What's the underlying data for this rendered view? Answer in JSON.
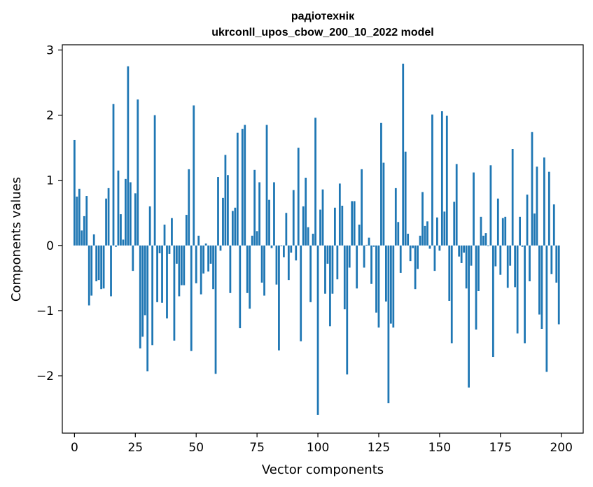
{
  "chart_data": {
    "type": "bar",
    "title": "радіотехнік",
    "subtitle": "ukrconll_upos_cbow_200_10_2022 model",
    "xlabel": "Vector components",
    "ylabel": "Components values",
    "xlim": [
      -5,
      209
    ],
    "ylim": [
      -2.88,
      3.08
    ],
    "xticks": [
      0,
      25,
      50,
      75,
      100,
      125,
      150,
      175,
      200
    ],
    "yticks": [
      -2,
      -1,
      0,
      1,
      2,
      3
    ],
    "ytick_labels": [
      "−2",
      "−1",
      "0",
      "1",
      "2",
      "3"
    ],
    "bar_color": "#1f77b4",
    "grid": false,
    "values": [
      1.62,
      0.75,
      0.87,
      0.23,
      0.45,
      0.76,
      -0.92,
      -0.77,
      0.17,
      -0.55,
      -0.53,
      -0.67,
      -0.66,
      0.72,
      0.88,
      -0.78,
      2.17,
      -0.02,
      1.15,
      0.48,
      0.09,
      1.02,
      2.75,
      0.97,
      -0.39,
      0.8,
      2.24,
      -1.58,
      -1.4,
      -1.07,
      -1.93,
      0.6,
      -1.53,
      2.0,
      -0.87,
      -0.12,
      -0.88,
      0.32,
      -1.12,
      -0.13,
      0.42,
      -1.46,
      -0.28,
      -0.78,
      -0.61,
      -0.61,
      0.47,
      1.17,
      -1.62,
      2.15,
      -0.58,
      0.15,
      -0.75,
      -0.43,
      0.03,
      -0.4,
      -0.28,
      -0.67,
      -1.97,
      1.05,
      -0.08,
      0.73,
      1.39,
      1.08,
      -0.73,
      0.53,
      0.58,
      1.73,
      -1.27,
      1.79,
      1.85,
      -0.73,
      -0.97,
      0.15,
      1.16,
      0.22,
      0.97,
      -0.57,
      -0.77,
      1.85,
      0.7,
      -0.04,
      0.97,
      -0.6,
      -1.61,
      -0.01,
      -0.18,
      0.5,
      -0.53,
      -0.11,
      0.85,
      -0.23,
      1.5,
      -1.47,
      0.6,
      1.04,
      0.28,
      -0.87,
      0.18,
      1.96,
      -2.6,
      0.55,
      0.86,
      -0.74,
      -0.28,
      -1.24,
      -0.74,
      0.58,
      -0.52,
      0.95,
      0.61,
      -0.98,
      -1.98,
      -0.34,
      0.68,
      0.68,
      -0.66,
      0.32,
      1.17,
      -0.34,
      0.01,
      0.12,
      -0.59,
      -0.02,
      -1.03,
      -1.26,
      1.88,
      1.27,
      -0.86,
      -2.42,
      -1.2,
      -1.26,
      0.88,
      0.36,
      -0.42,
      2.79,
      1.44,
      0.18,
      -0.24,
      -0.04,
      -0.67,
      -0.36,
      0.15,
      0.82,
      0.3,
      0.37,
      -0.05,
      2.01,
      -0.39,
      0.43,
      -0.08,
      2.06,
      0.52,
      1.99,
      -0.85,
      -1.5,
      0.67,
      1.25,
      -0.17,
      -0.27,
      -0.11,
      -0.66,
      -2.18,
      -0.31,
      1.12,
      -1.29,
      -0.7,
      0.44,
      0.15,
      0.19,
      -0.01,
      1.23,
      -1.71,
      -0.32,
      0.72,
      -0.45,
      0.42,
      0.44,
      -0.65,
      -0.31,
      1.48,
      -0.64,
      -1.35,
      0.44,
      -0.02,
      -1.5,
      0.78,
      -0.55,
      1.74,
      0.49,
      1.21,
      -1.06,
      -1.28,
      1.35,
      -1.94,
      1.13,
      -0.44,
      0.63,
      -0.57,
      -1.21
    ]
  }
}
